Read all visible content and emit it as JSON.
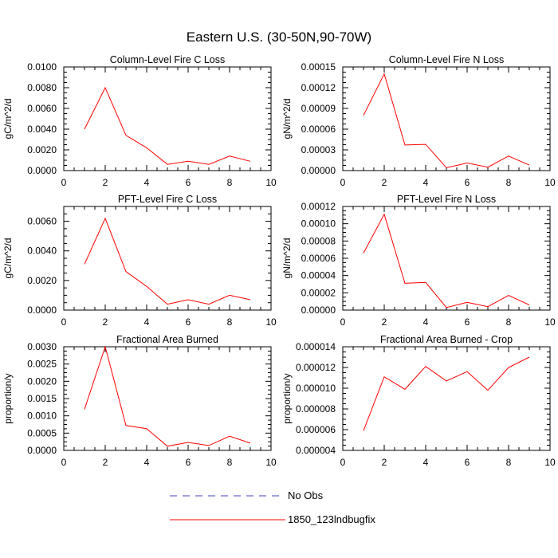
{
  "title": "Eastern U.S. (30-50N,90-70W)",
  "colors": {
    "series": "#ff0000",
    "no_obs": "#4040c0",
    "axis": "#000000"
  },
  "legend": [
    {
      "label": "No Obs",
      "style": "dashed",
      "color": "#4040c0"
    },
    {
      "label": "1850_123lndbugfix",
      "style": "solid",
      "color": "#ff0000"
    }
  ],
  "chart_data": [
    {
      "type": "line",
      "title": "Column-Level Fire C Loss",
      "xlabel": "",
      "ylabel": "gC/m^2/d",
      "xlim": [
        0,
        10
      ],
      "ylim": [
        0,
        0.01
      ],
      "x_ticks": [
        "0",
        "2",
        "4",
        "6",
        "8",
        "10"
      ],
      "y_ticks": [
        "0.0000",
        "0.0020",
        "0.0040",
        "0.0060",
        "0.0080",
        "0.0100"
      ],
      "series": [
        {
          "name": "1850_123lndbugfix",
          "x": [
            1,
            2,
            3,
            4,
            5,
            6,
            7,
            8,
            9
          ],
          "values": [
            0.004,
            0.008,
            0.0034,
            0.0022,
            0.0006,
            0.0009,
            0.0006,
            0.0014,
            0.0009
          ]
        }
      ]
    },
    {
      "type": "line",
      "title": "Column-Level Fire N Loss",
      "xlabel": "",
      "ylabel": "gN/m^2/d",
      "xlim": [
        0,
        10
      ],
      "ylim": [
        0,
        0.00015
      ],
      "x_ticks": [
        "0",
        "2",
        "4",
        "6",
        "8",
        "10"
      ],
      "y_ticks": [
        "0.00000",
        "0.00003",
        "0.00006",
        "0.00009",
        "0.00012",
        "0.00015"
      ],
      "series": [
        {
          "name": "1850_123lndbugfix",
          "x": [
            1,
            2,
            3,
            4,
            5,
            6,
            7,
            8,
            9
          ],
          "values": [
            8e-05,
            0.00014,
            3.7e-05,
            3.8e-05,
            4e-06,
            1.1e-05,
            5e-06,
            2.1e-05,
            8e-06
          ]
        }
      ]
    },
    {
      "type": "line",
      "title": "PFT-Level Fire C Loss",
      "xlabel": "",
      "ylabel": "gC/m^2/d",
      "xlim": [
        0,
        10
      ],
      "ylim": [
        0,
        0.007
      ],
      "x_ticks": [
        "0",
        "2",
        "4",
        "6",
        "8",
        "10"
      ],
      "y_ticks": [
        "0.0000",
        "0.0020",
        "0.0040",
        "0.0060"
      ],
      "series": [
        {
          "name": "1850_123lndbugfix",
          "x": [
            1,
            2,
            3,
            4,
            5,
            6,
            7,
            8,
            9
          ],
          "values": [
            0.0031,
            0.0062,
            0.0026,
            0.0016,
            0.0004,
            0.0007,
            0.0004,
            0.001,
            0.0007
          ]
        }
      ]
    },
    {
      "type": "line",
      "title": "PFT-Level Fire N Loss",
      "xlabel": "",
      "ylabel": "gN/m^2/d",
      "xlim": [
        0,
        10
      ],
      "ylim": [
        0,
        0.00012
      ],
      "x_ticks": [
        "0",
        "2",
        "4",
        "6",
        "8",
        "10"
      ],
      "y_ticks": [
        "0.00000",
        "0.00002",
        "0.00004",
        "0.00006",
        "0.00008",
        "0.00010",
        "0.00012"
      ],
      "series": [
        {
          "name": "1850_123lndbugfix",
          "x": [
            1,
            2,
            3,
            4,
            5,
            6,
            7,
            8,
            9
          ],
          "values": [
            6.6e-05,
            0.000111,
            3.1e-05,
            3.2e-05,
            3e-06,
            9e-06,
            4e-06,
            1.7e-05,
            6e-06
          ]
        }
      ]
    },
    {
      "type": "line",
      "title": "Fractional Area Burned",
      "xlabel": "",
      "ylabel": "proportion/y",
      "xlim": [
        0,
        10
      ],
      "ylim": [
        0,
        0.003
      ],
      "x_ticks": [
        "0",
        "2",
        "4",
        "6",
        "8",
        "10"
      ],
      "y_ticks": [
        "0.0000",
        "0.0005",
        "0.0010",
        "0.0015",
        "0.0020",
        "0.0025",
        "0.0030"
      ],
      "series": [
        {
          "name": "1850_123lndbugfix",
          "x": [
            1,
            2,
            3,
            4,
            5,
            6,
            7,
            8,
            9
          ],
          "values": [
            0.00119,
            0.003,
            0.00072,
            0.00063,
            0.00012,
            0.00023,
            0.00014,
            0.00041,
            0.00021
          ]
        }
      ]
    },
    {
      "type": "line",
      "title": "Fractional Area Burned - Crop",
      "xlabel": "",
      "ylabel": "proportion/y",
      "xlim": [
        0,
        10
      ],
      "ylim": [
        4e-06,
        1.4e-05
      ],
      "x_ticks": [
        "0",
        "2",
        "4",
        "6",
        "8",
        "10"
      ],
      "y_ticks": [
        "0.000004",
        "0.000006",
        "0.000008",
        "0.000010",
        "0.000012",
        "0.000014"
      ],
      "series": [
        {
          "name": "1850_123lndbugfix",
          "x": [
            1,
            2,
            3,
            4,
            5,
            6,
            7,
            8,
            9
          ],
          "values": [
            5.9e-06,
            1.11e-05,
            9.9e-06,
            1.21e-05,
            1.07e-05,
            1.16e-05,
            9.8e-06,
            1.2e-05,
            1.3e-05
          ]
        }
      ]
    }
  ]
}
